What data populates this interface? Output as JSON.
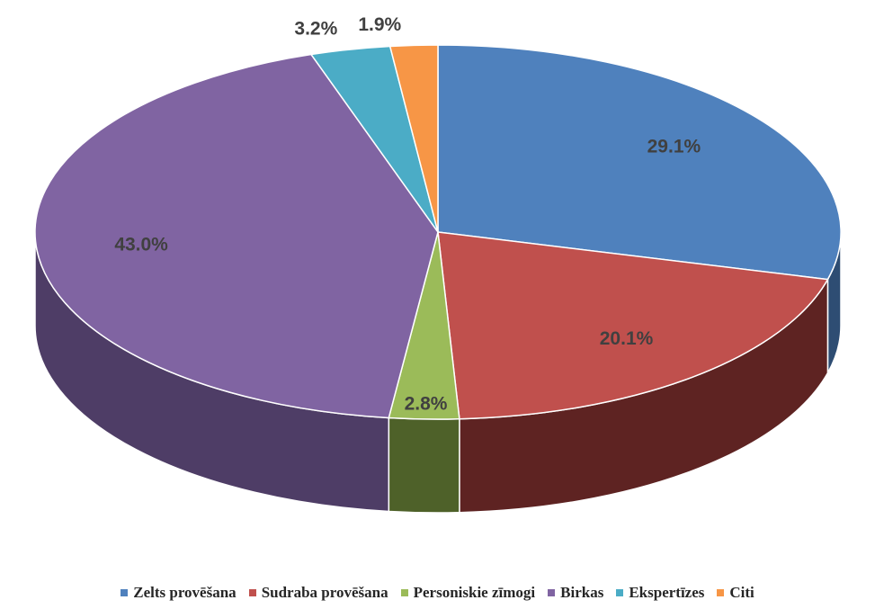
{
  "chart_data": {
    "type": "pie",
    "title": "",
    "style": "3d",
    "legend_position": "bottom",
    "slices": [
      {
        "label": "Zelts provēšana",
        "value": 29.1,
        "data_label": "29.1%",
        "color": "#4F81BD",
        "side_color": "#2E4D73"
      },
      {
        "label": "Sudraba provēšana",
        "value": 20.1,
        "data_label": "20.1%",
        "color": "#C0504D",
        "side_color": "#5E2322"
      },
      {
        "label": "Personiskie zīmogi",
        "value": 2.8,
        "data_label": "2.8%",
        "color": "#9BBB59",
        "side_color": "#4E6129"
      },
      {
        "label": "Birkas",
        "value": 43.0,
        "data_label": "43.0%",
        "color": "#8064A2",
        "side_color": "#4E3D66"
      },
      {
        "label": "Ekspertīzes",
        "value": 3.2,
        "data_label": "3.2%",
        "color": "#4BACC6",
        "side_color": "#2A6676"
      },
      {
        "label": "Citi",
        "value": 1.9,
        "data_label": "1.9%",
        "color": "#F79646",
        "side_color": "#9A5A24"
      }
    ]
  }
}
